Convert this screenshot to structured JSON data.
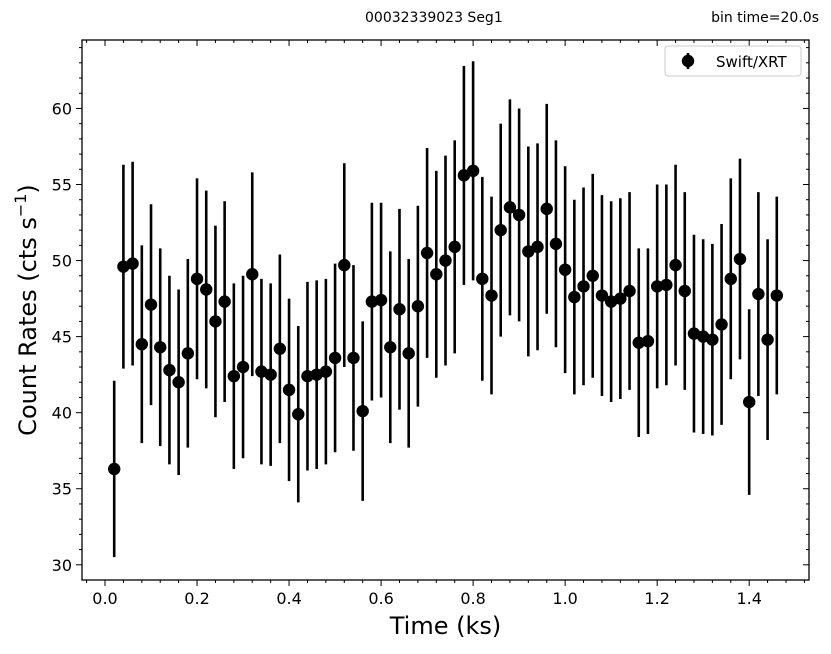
{
  "header": {
    "obs_label": "00032339023  Seg1",
    "bin_label": "bin time=20.0s"
  },
  "chart_data": {
    "type": "scatter",
    "xlabel": "Time (ks)",
    "ylabel_main": "Count Rates (cts s",
    "ylabel_exp": "−1",
    "ylabel_close": ")",
    "xlim": [
      -0.05,
      1.53
    ],
    "ylim": [
      29,
      64.5
    ],
    "xticks": [
      0.0,
      0.2,
      0.4,
      0.6,
      0.8,
      1.0,
      1.2,
      1.4
    ],
    "xtick_labels": [
      "0.0",
      "0.2",
      "0.4",
      "0.6",
      "0.8",
      "1.0",
      "1.2",
      "1.4"
    ],
    "yticks": [
      30,
      35,
      40,
      45,
      50,
      55,
      60
    ],
    "ytick_labels": [
      "30",
      "35",
      "40",
      "45",
      "50",
      "55",
      "60"
    ],
    "legend": {
      "label": "Swift/XRT",
      "position": "top-right"
    },
    "marker_color": "#000000",
    "series": [
      {
        "name": "Swift/XRT",
        "x": [
          0.02,
          0.04,
          0.06,
          0.08,
          0.1,
          0.12,
          0.14,
          0.16,
          0.18,
          0.2,
          0.22,
          0.24,
          0.26,
          0.28,
          0.3,
          0.32,
          0.34,
          0.36,
          0.38,
          0.4,
          0.42,
          0.44,
          0.46,
          0.48,
          0.5,
          0.52,
          0.54,
          0.56,
          0.58,
          0.6,
          0.62,
          0.64,
          0.66,
          0.68,
          0.7,
          0.72,
          0.74,
          0.76,
          0.78,
          0.8,
          0.82,
          0.84,
          0.86,
          0.88,
          0.9,
          0.92,
          0.94,
          0.96,
          0.98,
          1.0,
          1.02,
          1.04,
          1.06,
          1.08,
          1.1,
          1.12,
          1.14,
          1.16,
          1.18,
          1.2,
          1.22,
          1.24,
          1.26,
          1.28,
          1.3,
          1.32,
          1.34,
          1.36,
          1.38,
          1.4,
          1.42,
          1.44,
          1.46
        ],
        "y": [
          36.3,
          49.6,
          49.8,
          44.5,
          47.1,
          44.3,
          42.8,
          42.0,
          43.9,
          48.8,
          48.1,
          46.0,
          47.3,
          42.4,
          43.0,
          49.1,
          42.7,
          42.5,
          44.2,
          41.5,
          39.9,
          42.4,
          42.5,
          42.7,
          43.6,
          49.7,
          43.6,
          40.1,
          47.3,
          47.4,
          44.3,
          46.8,
          43.9,
          47.0,
          50.5,
          49.1,
          50.0,
          50.9,
          55.6,
          55.9,
          48.8,
          47.7,
          52.0,
          53.5,
          53.0,
          50.6,
          50.9,
          53.4,
          51.1,
          49.4,
          47.6,
          48.3,
          49.0,
          47.7,
          47.3,
          47.5,
          48.0,
          44.6,
          44.7,
          48.3,
          48.4,
          49.7,
          48.0,
          45.2,
          45.0,
          44.8,
          45.8,
          48.8,
          50.1,
          40.7,
          47.8,
          44.8,
          47.7
        ],
        "yerr": [
          5.8,
          6.7,
          6.7,
          6.5,
          6.6,
          6.5,
          6.2,
          6.1,
          6.2,
          6.6,
          6.5,
          6.3,
          6.6,
          6.1,
          6.0,
          6.7,
          6.1,
          6.0,
          6.2,
          6.0,
          5.8,
          6.2,
          6.2,
          6.1,
          6.2,
          6.7,
          6.1,
          5.9,
          6.5,
          6.4,
          6.3,
          6.6,
          6.2,
          6.6,
          6.9,
          6.8,
          6.9,
          7.0,
          7.2,
          7.2,
          6.7,
          6.5,
          7.0,
          7.1,
          7.0,
          6.9,
          6.8,
          6.9,
          6.8,
          6.8,
          6.4,
          6.5,
          6.7,
          6.6,
          6.6,
          6.6,
          6.5,
          6.2,
          6.1,
          6.7,
          6.6,
          6.6,
          6.5,
          6.5,
          6.4,
          6.3,
          6.6,
          6.6,
          6.6,
          6.1,
          6.7,
          6.6,
          6.5
        ]
      }
    ]
  }
}
